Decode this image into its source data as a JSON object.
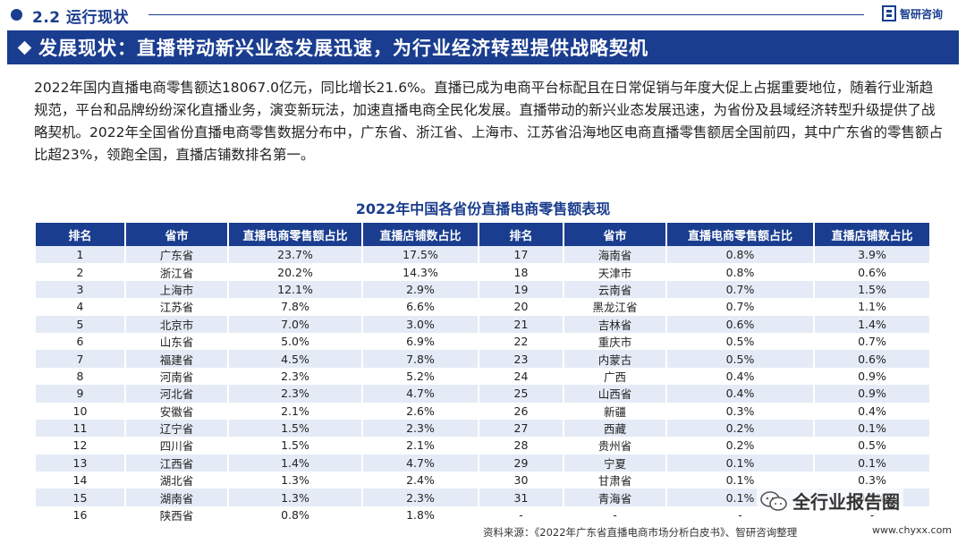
{
  "header": {
    "section_title": "2.2 运行现状",
    "logo_text": "智研咨询"
  },
  "banner": {
    "title": "发展现状：直播带动新兴业态发展迅速，为行业经济转型提供战略契机"
  },
  "paragraph": "2022年国内直播电商零售额达18067.0亿元，同比增长21.6%。直播已成为电商平台标配且在日常促销与年度大促上占据重要地位，随着行业渐趋规范，平台和品牌纷纷深化直播业务，演变新玩法，加速直播电商全民化发展。直播带动的新兴业态发展迅速，为省份及县域经济转型升级提供了战略契机。2022年全国省份直播电商零售数据分布中，广东省、浙江省、上海市、江苏省沿海地区电商直播零售额居全国前四，其中广东省的零售额占比超23%，领跑全国，直播店铺数排名第一。",
  "table": {
    "title": "2022年中国各省份直播电商零售额表现",
    "headers": [
      "排名",
      "省市",
      "直播电商零售额占比",
      "直播店铺数占比",
      "排名",
      "省市",
      "直播电商零售额占比",
      "直播店铺数占比"
    ],
    "rows": [
      [
        "1",
        "广东省",
        "23.7%",
        "17.5%",
        "17",
        "海南省",
        "0.8%",
        "3.9%"
      ],
      [
        "2",
        "浙江省",
        "20.2%",
        "14.3%",
        "18",
        "天津市",
        "0.8%",
        "0.6%"
      ],
      [
        "3",
        "上海市",
        "12.1%",
        "2.9%",
        "19",
        "云南省",
        "0.7%",
        "1.5%"
      ],
      [
        "4",
        "江苏省",
        "7.8%",
        "6.6%",
        "20",
        "黑龙江省",
        "0.7%",
        "1.1%"
      ],
      [
        "5",
        "北京市",
        "7.0%",
        "3.0%",
        "21",
        "吉林省",
        "0.6%",
        "1.4%"
      ],
      [
        "6",
        "山东省",
        "5.0%",
        "6.9%",
        "22",
        "重庆市",
        "0.5%",
        "0.7%"
      ],
      [
        "7",
        "福建省",
        "4.5%",
        "7.8%",
        "23",
        "内蒙古",
        "0.5%",
        "0.6%"
      ],
      [
        "8",
        "河南省",
        "2.3%",
        "5.2%",
        "24",
        "广西",
        "0.4%",
        "0.9%"
      ],
      [
        "9",
        "河北省",
        "2.3%",
        "4.7%",
        "25",
        "山西省",
        "0.4%",
        "0.9%"
      ],
      [
        "10",
        "安徽省",
        "2.1%",
        "2.6%",
        "26",
        "新疆",
        "0.3%",
        "0.4%"
      ],
      [
        "11",
        "辽宁省",
        "1.5%",
        "2.3%",
        "27",
        "西藏",
        "0.2%",
        "0.1%"
      ],
      [
        "12",
        "四川省",
        "1.5%",
        "2.1%",
        "28",
        "贵州省",
        "0.2%",
        "0.5%"
      ],
      [
        "13",
        "江西省",
        "1.4%",
        "4.7%",
        "29",
        "宁夏",
        "0.1%",
        "0.1%"
      ],
      [
        "14",
        "湖北省",
        "1.3%",
        "2.4%",
        "30",
        "甘肃省",
        "0.1%",
        "0.3%"
      ],
      [
        "15",
        "湖南省",
        "1.3%",
        "2.3%",
        "31",
        "青海省",
        "0.1%",
        "0.1%"
      ],
      [
        "16",
        "陕西省",
        "0.8%",
        "1.8%",
        "-",
        "-",
        "-",
        "-"
      ]
    ]
  },
  "footer": {
    "source": "资料来源：《2022年广东省直播电商市场分析白皮书》、智研咨询整理",
    "watermark": "全行业报告圈",
    "site": "www.chyxx.com"
  },
  "colors": {
    "brand_blue": "#1a3d8f",
    "row_tint": "#e4ebf6"
  },
  "icons": {
    "logo": "chyxx-logo-icon",
    "banner_marker": "diamond-icon",
    "watermark": "wechat-icon"
  }
}
